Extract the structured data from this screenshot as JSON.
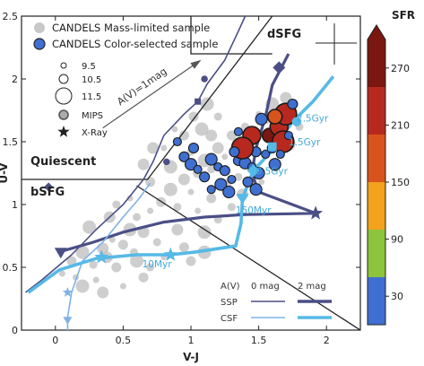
{
  "chart_data": {
    "type": "scatter",
    "xlabel": "V-J",
    "ylabel": "U-V",
    "xlim": [
      -0.25,
      2.25
    ],
    "ylim": [
      0,
      2.5
    ],
    "xticks": [
      0,
      0.5,
      1,
      1.5,
      2
    ],
    "yticks": [
      0,
      0.5,
      1,
      1.5,
      2,
      2.5
    ],
    "xtick_labels": [
      "0",
      "0.5",
      "1",
      "1.5",
      "2"
    ],
    "ytick_labels": [
      "0",
      "0.5",
      "1",
      "1.5",
      "2",
      "2.5"
    ],
    "regions": {
      "quiescent": "Quiescent",
      "dsfg": "dSFG",
      "bsfg": "bSFG"
    },
    "legend": {
      "placement": "top-left",
      "mass_limited": "CANDELS Mass-limited sample",
      "color_selected": "CANDELS Color-selected sample",
      "sizes": [
        "9.5",
        "10.5",
        "11.5"
      ],
      "mips": "MIPS",
      "xray": "X-Ray"
    },
    "colorbar": {
      "label": "SFR",
      "min": 0,
      "max": 300,
      "ticks": [
        30,
        90,
        150,
        210,
        270
      ],
      "tick_labels": [
        "30",
        "90",
        "150",
        "210",
        "270"
      ],
      "colors": [
        "#3f6fd0",
        "#8cc43c",
        "#f2a21c",
        "#d9541c",
        "#b7291f",
        "#7a1711"
      ]
    },
    "boxes": {
      "quiescent": [
        [
          -0.25,
          1.2
        ],
        [
          0.68,
          1.2
        ],
        [
          1.6,
          2.5
        ]
      ],
      "dsfg": [
        [
          1.0,
          2.5
        ],
        [
          1.0,
          2.2
        ],
        [
          1.6,
          2.2
        ]
      ],
      "split": [
        [
          0.6,
          1.15
        ],
        [
          2.25,
          0
        ]
      ]
    },
    "av_vector": {
      "label": "A(V)=1mag",
      "from": [
        0.35,
        1.61
      ],
      "to": [
        1.06,
        2.14
      ]
    },
    "key": {
      "header_av": "A(V)",
      "header_0": "0 mag",
      "header_2": "2 mag",
      "ssp": "SSP",
      "csf": "CSF"
    },
    "tracks": {
      "ssp_0mag": {
        "color": "#4b4f86",
        "points": [
          [
            -0.22,
            0.3
          ],
          [
            -0.1,
            0.4
          ],
          [
            0.12,
            0.6
          ],
          [
            0.3,
            0.8
          ],
          [
            0.5,
            1.0
          ],
          [
            0.65,
            1.2
          ],
          [
            0.72,
            1.34
          ],
          [
            0.8,
            1.55
          ],
          [
            0.95,
            1.72
          ],
          [
            1.05,
            1.82
          ],
          [
            1.12,
            1.96
          ],
          [
            1.25,
            2.15
          ],
          [
            1.35,
            2.38
          ],
          [
            1.4,
            2.5
          ]
        ],
        "markers": [
          [
            -0.05,
            1.14,
            "diamond"
          ],
          [
            0.82,
            1.34,
            "circle"
          ],
          [
            1.05,
            1.82,
            "square"
          ],
          [
            1.1,
            2.0,
            "circle"
          ]
        ]
      },
      "ssp_2mag": {
        "color": "#4b4f86",
        "points": [
          [
            0.02,
            0.62
          ],
          [
            0.28,
            0.7
          ],
          [
            0.5,
            0.78
          ],
          [
            0.8,
            0.86
          ],
          [
            1.1,
            0.9
          ],
          [
            1.4,
            0.92
          ],
          [
            1.92,
            0.93
          ],
          [
            1.5,
            1.1
          ],
          [
            1.45,
            1.25
          ],
          [
            1.48,
            1.45
          ],
          [
            1.55,
            1.7
          ],
          [
            1.6,
            1.95
          ],
          [
            1.72,
            2.2
          ]
        ],
        "markers": [
          [
            0.04,
            0.62,
            "triangle-down"
          ],
          [
            1.92,
            0.93,
            "star"
          ],
          [
            1.65,
            2.09,
            "diamond"
          ]
        ]
      },
      "csf_0mag": {
        "color": "#7fb2e6",
        "points": [
          [
            0.09,
            0.0
          ],
          [
            0.09,
            0.1
          ],
          [
            0.12,
            0.3
          ],
          [
            0.2,
            0.55
          ],
          [
            0.35,
            0.7
          ],
          [
            0.5,
            0.9
          ],
          [
            0.62,
            1.05
          ],
          [
            0.7,
            1.17
          ]
        ],
        "markers": [
          [
            0.09,
            0.08,
            "triangle-down"
          ],
          [
            0.09,
            0.3,
            "star"
          ]
        ]
      },
      "csf_2mag": {
        "color": "#56b9e6",
        "points": [
          [
            -0.2,
            0.3
          ],
          [
            0.03,
            0.48
          ],
          [
            0.3,
            0.57
          ],
          [
            0.6,
            0.6
          ],
          [
            0.85,
            0.6
          ],
          [
            1.02,
            0.62
          ],
          [
            1.33,
            0.67
          ],
          [
            1.37,
            0.85
          ],
          [
            1.38,
            1.05
          ],
          [
            1.46,
            1.27
          ],
          [
            1.6,
            1.43
          ],
          [
            1.75,
            1.66
          ],
          [
            1.9,
            1.82
          ],
          [
            2.05,
            2.02
          ]
        ],
        "markers": [
          [
            0.34,
            0.58,
            "star"
          ],
          [
            0.85,
            0.6,
            "star"
          ],
          [
            1.38,
            1.05,
            "triangle-down"
          ],
          [
            1.46,
            1.27,
            "diamond"
          ],
          [
            1.6,
            1.46,
            "square"
          ],
          [
            1.78,
            1.66,
            "circle"
          ]
        ]
      }
    },
    "age_labels": [
      {
        "text": "2.5Gyr",
        "x": 1.78,
        "y": 1.66
      },
      {
        "text": "1.5Gyr",
        "x": 1.72,
        "y": 1.47
      },
      {
        "text": "0.5Gyr",
        "x": 1.48,
        "y": 1.24
      },
      {
        "text": "150Myr",
        "x": 1.33,
        "y": 0.93
      },
      {
        "text": "10Myr",
        "x": 0.64,
        "y": 0.5
      }
    ],
    "series": [
      {
        "name": "CANDELS Mass-limited sample",
        "marker": "circle",
        "color": "#bdbdbd",
        "points": [
          [
            0.05,
            0.45
          ],
          [
            0.12,
            0.55
          ],
          [
            0.2,
            0.62
          ],
          [
            0.28,
            0.52
          ],
          [
            0.35,
            0.65
          ],
          [
            0.42,
            0.72
          ],
          [
            0.5,
            0.68
          ],
          [
            0.55,
            0.8
          ],
          [
            0.6,
            0.9
          ],
          [
            0.65,
            0.78
          ],
          [
            0.7,
            0.95
          ],
          [
            0.78,
            1.02
          ],
          [
            0.85,
            1.12
          ],
          [
            0.9,
            0.98
          ],
          [
            0.95,
            1.2
          ],
          [
            1.0,
            1.1
          ],
          [
            1.05,
            1.25
          ],
          [
            1.1,
            1.35
          ],
          [
            1.15,
            1.28
          ],
          [
            1.2,
            1.45
          ],
          [
            1.25,
            1.38
          ],
          [
            1.3,
            1.55
          ],
          [
            1.35,
            1.48
          ],
          [
            1.4,
            1.62
          ],
          [
            1.45,
            1.58
          ],
          [
            1.5,
            1.72
          ],
          [
            1.55,
            1.68
          ],
          [
            1.6,
            1.8
          ],
          [
            1.65,
            1.75
          ],
          [
            1.7,
            1.85
          ],
          [
            0.3,
            0.4
          ],
          [
            0.45,
            0.5
          ],
          [
            0.6,
            0.55
          ],
          [
            0.75,
            0.7
          ],
          [
            0.9,
            0.8
          ],
          [
            1.05,
            0.95
          ],
          [
            1.15,
            1.05
          ],
          [
            1.25,
            1.15
          ],
          [
            1.35,
            1.22
          ],
          [
            0.4,
            0.9
          ],
          [
            0.55,
            1.05
          ],
          [
            0.7,
            1.18
          ],
          [
            0.85,
            1.3
          ],
          [
            1.0,
            1.42
          ],
          [
            1.15,
            1.55
          ],
          [
            0.8,
            0.58
          ],
          [
            0.95,
            0.66
          ],
          [
            1.1,
            0.78
          ],
          [
            1.2,
            0.88
          ],
          [
            0.35,
            0.3
          ],
          [
            0.5,
            0.35
          ],
          [
            0.65,
            0.42
          ],
          [
            0.2,
            0.35
          ],
          [
            1.3,
            0.98
          ],
          [
            1.45,
            1.3
          ],
          [
            1.55,
            1.42
          ],
          [
            1.6,
            1.55
          ],
          [
            0.25,
            0.82
          ],
          [
            0.45,
            1.0
          ],
          [
            0.65,
            1.32
          ],
          [
            0.8,
            1.45
          ],
          [
            0.95,
            1.55
          ],
          [
            1.08,
            1.6
          ],
          [
            1.2,
            1.7
          ],
          [
            0.72,
            1.45
          ],
          [
            0.88,
            1.6
          ],
          [
            1.02,
            1.7
          ],
          [
            1.12,
            1.8
          ],
          [
            0.58,
            0.62
          ],
          [
            0.38,
            0.58
          ],
          [
            0.15,
            0.42
          ],
          [
            1.0,
            0.55
          ],
          [
            1.1,
            0.62
          ],
          [
            0.7,
            0.5
          ],
          [
            1.38,
            1.08
          ],
          [
            1.52,
            1.18
          ],
          [
            1.62,
            1.3
          ],
          [
            1.72,
            1.48
          ],
          [
            1.8,
            1.62
          ]
        ]
      },
      {
        "name": "CANDELS Color-selected sample",
        "marker": "circle",
        "points": [
          {
            "x": 0.9,
            "y": 1.5,
            "sfr": 20
          },
          {
            "x": 0.95,
            "y": 1.38,
            "sfr": 30
          },
          {
            "x": 1.0,
            "y": 1.32,
            "sfr": 25
          },
          {
            "x": 1.05,
            "y": 1.28,
            "sfr": 40
          },
          {
            "x": 1.1,
            "y": 1.22,
            "sfr": 30
          },
          {
            "x": 1.15,
            "y": 1.36,
            "sfr": 20
          },
          {
            "x": 1.2,
            "y": 1.3,
            "sfr": 35
          },
          {
            "x": 1.25,
            "y": 1.27,
            "sfr": 45
          },
          {
            "x": 1.22,
            "y": 1.16,
            "sfr": 30
          },
          {
            "x": 1.3,
            "y": 1.2,
            "sfr": 30
          },
          {
            "x": 1.35,
            "y": 1.35,
            "sfr": 40
          },
          {
            "x": 1.4,
            "y": 1.33,
            "sfr": 30
          },
          {
            "x": 1.45,
            "y": 1.3,
            "sfr": 50
          },
          {
            "x": 1.48,
            "y": 1.42,
            "sfr": 30
          },
          {
            "x": 1.5,
            "y": 1.25,
            "sfr": 40
          },
          {
            "x": 1.55,
            "y": 1.4,
            "sfr": 30
          },
          {
            "x": 1.6,
            "y": 1.45,
            "sfr": 35
          },
          {
            "x": 1.62,
            "y": 1.32,
            "sfr": 30
          },
          {
            "x": 1.58,
            "y": 1.55,
            "sfr": 300
          },
          {
            "x": 1.65,
            "y": 1.62,
            "sfr": 290
          },
          {
            "x": 1.7,
            "y": 1.72,
            "sfr": 280
          },
          {
            "x": 1.62,
            "y": 1.7,
            "sfr": 180
          },
          {
            "x": 1.75,
            "y": 1.8,
            "sfr": 30
          },
          {
            "x": 1.68,
            "y": 1.5,
            "sfr": 240
          },
          {
            "x": 1.72,
            "y": 1.55,
            "sfr": 30
          },
          {
            "x": 1.45,
            "y": 1.55,
            "sfr": 290
          },
          {
            "x": 1.38,
            "y": 1.45,
            "sfr": 260
          },
          {
            "x": 1.35,
            "y": 1.58,
            "sfr": 30
          },
          {
            "x": 1.42,
            "y": 1.18,
            "sfr": 30
          },
          {
            "x": 1.28,
            "y": 1.1,
            "sfr": 30
          },
          {
            "x": 1.15,
            "y": 1.12,
            "sfr": 30
          },
          {
            "x": 1.02,
            "y": 1.45,
            "sfr": 30
          },
          {
            "x": 1.52,
            "y": 1.68,
            "sfr": 30
          },
          {
            "x": 1.66,
            "y": 1.4,
            "sfr": 30
          },
          {
            "x": 1.32,
            "y": 1.42,
            "sfr": 30
          },
          {
            "x": 1.48,
            "y": 1.12,
            "sfr": 30
          }
        ]
      }
    ]
  }
}
